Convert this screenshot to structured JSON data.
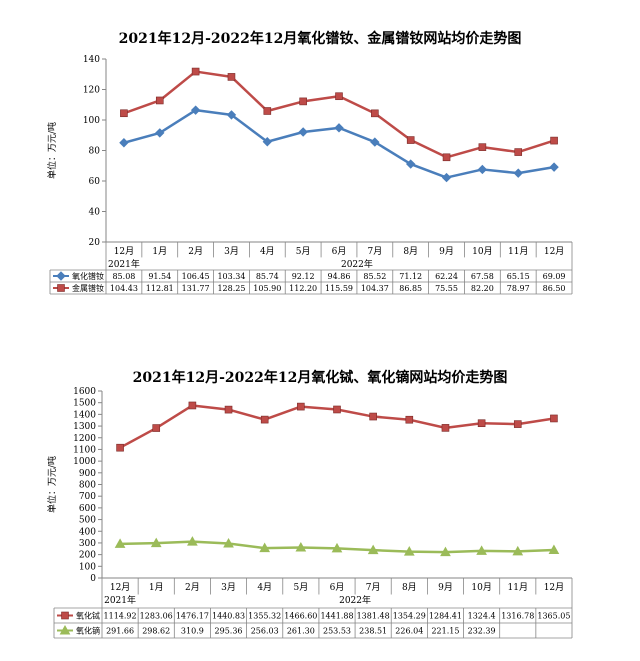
{
  "chart_data": [
    {
      "type": "line",
      "title": "2021年12月-2022年12月氧化镨钕、金属镨钕网站均价走势图",
      "ylabel": "单位：万元/吨",
      "ylim": [
        20,
        140
      ],
      "yticks": [
        20,
        40,
        60,
        80,
        100,
        120,
        140
      ],
      "categories": [
        "12月",
        "1月",
        "2月",
        "3月",
        "4月",
        "5月",
        "6月",
        "7月",
        "8月",
        "9月",
        "10月",
        "11月",
        "12月"
      ],
      "year_labels": [
        {
          "label": "2021年",
          "at": 0
        },
        {
          "label": "2022年",
          "at": 6.5
        }
      ],
      "grid": false,
      "legend": "data-table",
      "series": [
        {
          "name": "氧化镨钕",
          "color": "#4a7ebb",
          "marker": "diamond",
          "values": [
            85.08,
            91.54,
            106.45,
            103.34,
            85.74,
            92.12,
            94.86,
            85.52,
            71.12,
            62.24,
            67.58,
            65.15,
            69.09
          ],
          "labels": [
            "85.08",
            "91.54",
            "106.45",
            "103.34",
            "85.74",
            "92.12",
            "94.86",
            "85.52",
            "71.12",
            "62.24",
            "67.58",
            "65.15",
            "69.09"
          ]
        },
        {
          "name": "金属镨钕",
          "color": "#be4b48",
          "marker": "square",
          "values": [
            104.43,
            112.81,
            131.77,
            128.25,
            105.9,
            112.2,
            115.59,
            104.37,
            86.85,
            75.55,
            82.2,
            78.97,
            86.5
          ],
          "labels": [
            "104.43",
            "112.81",
            "131.77",
            "128.25",
            "105.90",
            "112.20",
            "115.59",
            "104.37",
            "86.85",
            "75.55",
            "82.20",
            "78.97",
            "86.50"
          ]
        }
      ]
    },
    {
      "type": "line",
      "title": "2021年12月-2022年12月氧化铽、氧化镝网站均价走势图",
      "ylabel": "单位：万元/吨",
      "ylim": [
        0,
        1600
      ],
      "yticks": [
        0,
        100,
        200,
        300,
        400,
        500,
        600,
        700,
        800,
        900,
        1000,
        1100,
        1200,
        1300,
        1400,
        1500,
        1600
      ],
      "categories": [
        "12月",
        "1月",
        "2月",
        "3月",
        "4月",
        "5月",
        "6月",
        "7月",
        "8月",
        "9月",
        "10月",
        "11月",
        "12月"
      ],
      "year_labels": [
        {
          "label": "2021年",
          "at": 0
        },
        {
          "label": "2022年",
          "at": 6.5
        }
      ],
      "grid": false,
      "legend": "data-table",
      "series": [
        {
          "name": "氧化铽",
          "color": "#be4b48",
          "marker": "square",
          "values": [
            1114.92,
            1283.06,
            1476.17,
            1440.83,
            1355.32,
            1466.6,
            1441.88,
            1381.48,
            1354.29,
            1284.41,
            1324.4,
            1316.78,
            1365.05
          ],
          "labels": [
            "1114.92",
            "1283.06",
            "1476.17",
            "1440.83",
            "1355.32",
            "1466.60",
            "1441.88",
            "1381.48",
            "1354.29",
            "1284.41",
            "1324.4",
            "1316.78",
            "1365.05"
          ]
        },
        {
          "name": "氧化镝",
          "color": "#9bbb59",
          "marker": "triangle",
          "values": [
            291.66,
            298.62,
            310.9,
            295.36,
            256.03,
            261.3,
            253.53,
            238.51,
            226.04,
            221.15,
            232.39,
            227.95,
            239.4
          ],
          "labels": [
            "291.66",
            "298.62",
            "310.9",
            "295.36",
            "256.03",
            "261.30",
            "253.53",
            "238.51",
            "226.04",
            "221.15",
            "232.39",
            "",
            ""
          ]
        }
      ]
    }
  ]
}
